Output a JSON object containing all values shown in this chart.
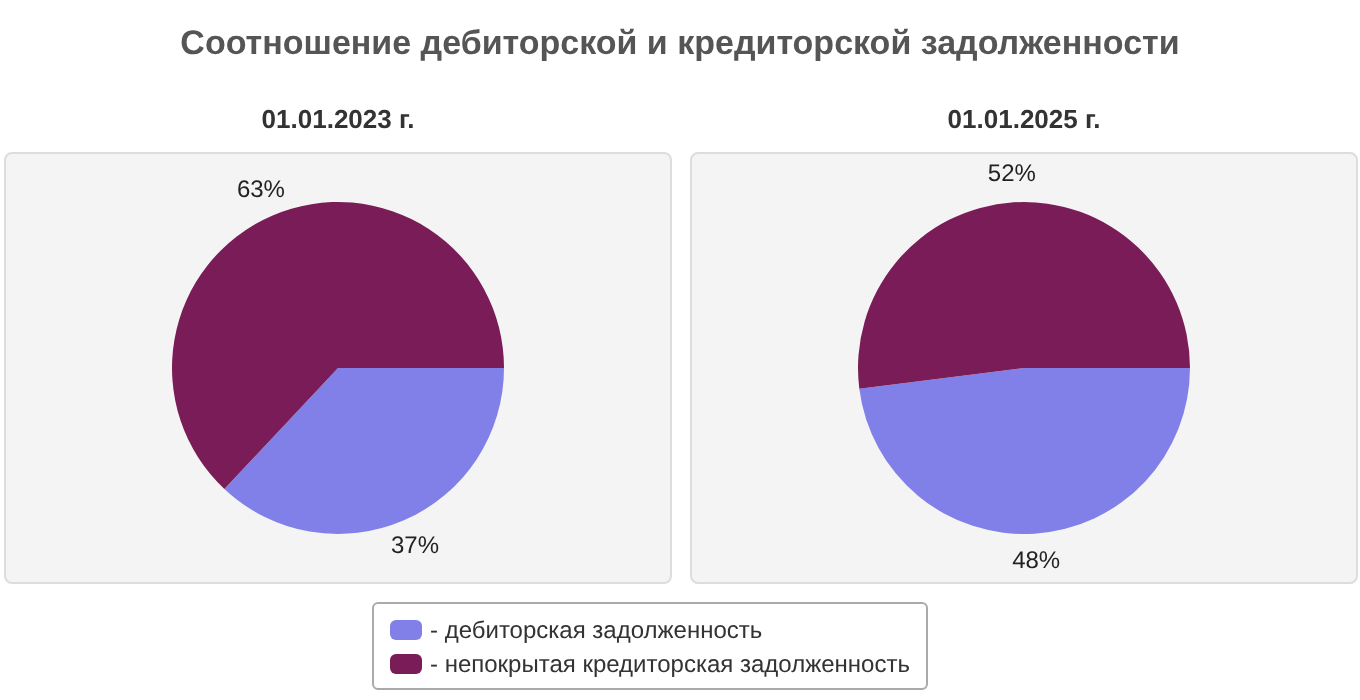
{
  "chart_data": [
    {
      "type": "pie",
      "title": "Соотношение дебиторской и кредиторской задолженности",
      "subtitle": "01.01.2023 г.",
      "categories": [
        "- дебиторская задолженность",
        "- непокрытая кредиторская задолженность"
      ],
      "values": [
        37,
        63
      ],
      "value_labels": [
        "37%",
        "63%"
      ],
      "colors": [
        "#8080e8",
        "#7a1c57"
      ],
      "legend": "bottom"
    },
    {
      "type": "pie",
      "subtitle": "01.01.2025 г.",
      "categories": [
        null,
        null
      ],
      "values": [
        48,
        52
      ],
      "value_labels": [
        "48%",
        "52%"
      ],
      "colors": [
        "#8080e8",
        "#7a1c57"
      ]
    }
  ]
}
